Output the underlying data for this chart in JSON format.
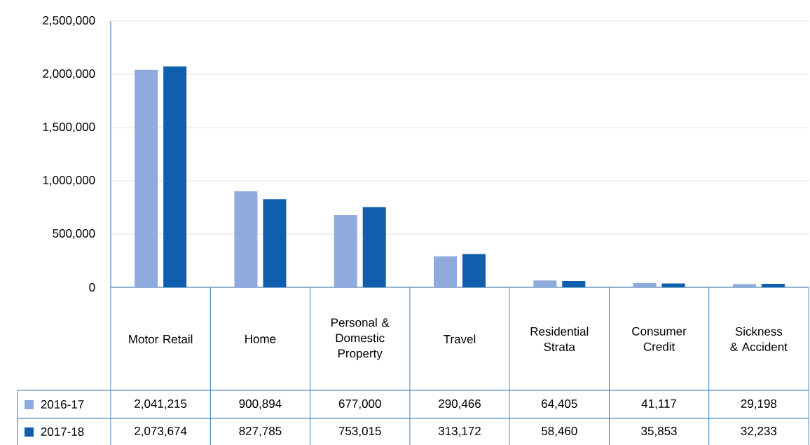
{
  "chart_data": {
    "type": "bar",
    "categories": [
      "Motor Retail",
      "Home",
      "Personal & Domestic Property",
      "Travel",
      "Residential Strata",
      "Consumer Credit",
      "Sickness & Accident"
    ],
    "series": [
      {
        "name": "2016-17",
        "color": "#8faadc",
        "values": [
          2041215,
          900894,
          677000,
          290466,
          64405,
          41117,
          29198
        ],
        "value_labels": [
          "2,041,215",
          "900,894",
          "677,000",
          "290,466",
          "64,405",
          "41,117",
          "29,198"
        ]
      },
      {
        "name": "2017-18",
        "color": "#0f5fae",
        "values": [
          2073674,
          827785,
          753015,
          313172,
          58460,
          35853,
          32233
        ],
        "value_labels": [
          "2,073,674",
          "827,785",
          "753,015",
          "313,172",
          "58,460",
          "35,853",
          "32,233"
        ]
      }
    ],
    "ylim": [
      0,
      2500000
    ],
    "yticks": [
      0,
      {
        "value": 500000,
        "label": "500,000"
      },
      {
        "value": 1000000,
        "label": "1,000,000"
      },
      {
        "value": 1500000,
        "label": "1,500,000"
      },
      {
        "value": 2000000,
        "label": "2,000,000"
      },
      {
        "value": 2500000,
        "label": "2,500,000"
      }
    ],
    "grid": "y",
    "legend": "bottom"
  }
}
